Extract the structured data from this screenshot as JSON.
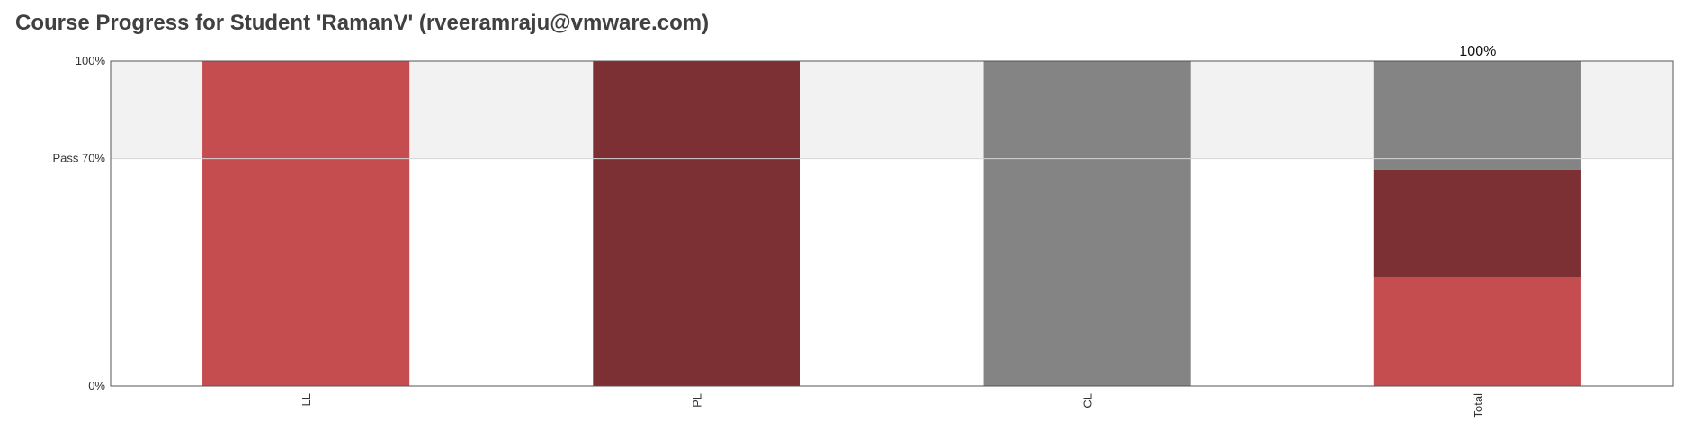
{
  "page": {
    "title": "Course Progress for Student 'RamanV' (rveeramraju@vmware.com)"
  },
  "chart_data": {
    "type": "bar",
    "stacked": true,
    "categories": [
      "LL",
      "PL",
      "CL",
      "Total"
    ],
    "series": [
      {
        "color": "#c64d4f",
        "values": [
          100,
          0,
          0,
          33.33
        ]
      },
      {
        "color": "#7d3033",
        "values": [
          0,
          100,
          0,
          33.33
        ]
      },
      {
        "color": "#848484",
        "values": [
          0,
          0,
          100,
          33.34
        ]
      }
    ],
    "ylim": [
      0,
      100
    ],
    "yticks": [
      {
        "value": 100,
        "label": "100%"
      },
      {
        "value": 70,
        "label": "Pass 70%"
      },
      {
        "value": 0,
        "label": "0%"
      }
    ],
    "pass_threshold": 70,
    "pass_band_color": "#f2f2f2",
    "annotations": [
      {
        "category": "Total",
        "value": 100,
        "label": "100%"
      }
    ],
    "xlabel": "",
    "ylabel": "",
    "legend": "none"
  }
}
